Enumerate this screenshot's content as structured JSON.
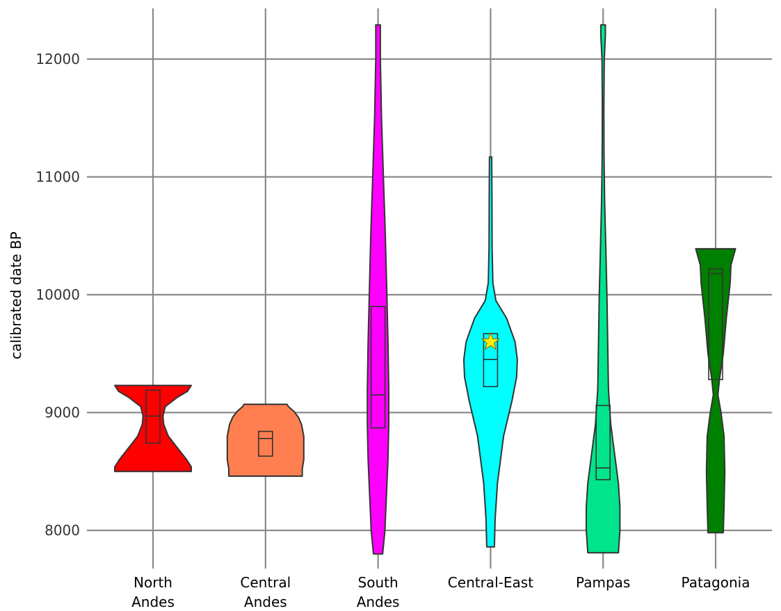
{
  "chart_data": {
    "type": "violin",
    "title": "",
    "xlabel": "",
    "ylabel": "calibrated date BP",
    "ylim": [
      7800,
      12300
    ],
    "yticks": [
      8000,
      9000,
      10000,
      11000,
      12000
    ],
    "ytick_labels": [
      "8000",
      "9000",
      "10000",
      "11000",
      "12000"
    ],
    "grid": true,
    "categories": [
      {
        "name": "North Andes",
        "label_lines": [
          "North",
          "Andes"
        ]
      },
      {
        "name": "Central Andes",
        "label_lines": [
          "Central",
          "Andes"
        ]
      },
      {
        "name": "South Andes",
        "label_lines": [
          "South",
          "Andes"
        ]
      },
      {
        "name": "Central-East",
        "label_lines": [
          "Central-East"
        ]
      },
      {
        "name": "Pampas",
        "label_lines": [
          "Pampas"
        ]
      },
      {
        "name": "Patagonia",
        "label_lines": [
          "Patagonia"
        ]
      }
    ],
    "series": [
      {
        "category": "North Andes",
        "color": "#ff0000",
        "min": 8500,
        "max": 9230,
        "box": {
          "q1": 8740,
          "median": 8970,
          "q3": 9190
        },
        "profile": [
          [
            8500,
            0.5
          ],
          [
            8540,
            0.5
          ],
          [
            8600,
            0.44
          ],
          [
            8700,
            0.32
          ],
          [
            8800,
            0.2
          ],
          [
            8900,
            0.14
          ],
          [
            8970,
            0.13
          ],
          [
            9050,
            0.16
          ],
          [
            9130,
            0.32
          ],
          [
            9180,
            0.45
          ],
          [
            9230,
            0.5
          ]
        ]
      },
      {
        "category": "Central Andes",
        "color": "#ff7f50",
        "min": 8460,
        "max": 9070,
        "box": {
          "q1": 8630,
          "median": 8780,
          "q3": 8840
        },
        "profile": [
          [
            8460,
            0.48
          ],
          [
            8520,
            0.48
          ],
          [
            8600,
            0.5
          ],
          [
            8700,
            0.5
          ],
          [
            8800,
            0.5
          ],
          [
            8900,
            0.47
          ],
          [
            8960,
            0.43
          ],
          [
            9010,
            0.37
          ],
          [
            9050,
            0.3
          ],
          [
            9070,
            0.28
          ]
        ]
      },
      {
        "category": "South Andes",
        "color": "#ff00ff",
        "min": 7800,
        "max": 12290,
        "box": {
          "q1": 8870,
          "median": 9150,
          "q3": 9900
        },
        "profile": [
          [
            7800,
            0.06
          ],
          [
            8000,
            0.09
          ],
          [
            8300,
            0.11
          ],
          [
            8600,
            0.13
          ],
          [
            8900,
            0.14
          ],
          [
            9200,
            0.14
          ],
          [
            9600,
            0.13
          ],
          [
            10000,
            0.115
          ],
          [
            10500,
            0.095
          ],
          [
            11000,
            0.07
          ],
          [
            11500,
            0.045
          ],
          [
            12000,
            0.03
          ],
          [
            12290,
            0.03
          ]
        ]
      },
      {
        "category": "Central-East",
        "color": "#00ffff",
        "min": 7860,
        "max": 11170,
        "box": {
          "q1": 9220,
          "median": 9450,
          "q3": 9670
        },
        "profile": [
          [
            7860,
            0.05
          ],
          [
            8100,
            0.06
          ],
          [
            8400,
            0.09
          ],
          [
            8800,
            0.17
          ],
          [
            9100,
            0.28
          ],
          [
            9300,
            0.34
          ],
          [
            9450,
            0.35
          ],
          [
            9600,
            0.32
          ],
          [
            9800,
            0.21
          ],
          [
            9950,
            0.07
          ],
          [
            10100,
            0.03
          ],
          [
            10400,
            0.02
          ],
          [
            10800,
            0.018
          ],
          [
            11170,
            0.015
          ]
        ]
      },
      {
        "category": "Pampas",
        "color": "#00e48c",
        "min": 7810,
        "max": 12290,
        "box": {
          "q1": 8430,
          "median": 8530,
          "q3": 9060
        },
        "profile": [
          [
            7810,
            0.2
          ],
          [
            8000,
            0.22
          ],
          [
            8200,
            0.22
          ],
          [
            8400,
            0.2
          ],
          [
            8600,
            0.16
          ],
          [
            8900,
            0.1
          ],
          [
            9200,
            0.07
          ],
          [
            9600,
            0.06
          ],
          [
            10000,
            0.05
          ],
          [
            10400,
            0.035
          ],
          [
            10800,
            0.02
          ],
          [
            11200,
            0.012
          ],
          [
            11600,
            0.01
          ],
          [
            12000,
            0.015
          ],
          [
            12200,
            0.03
          ],
          [
            12290,
            0.03
          ]
        ]
      },
      {
        "category": "Patagonia",
        "color": "#008000",
        "min": 7980,
        "max": 10390,
        "box": {
          "q1": 9280,
          "median": 10180,
          "q3": 10220
        },
        "profile": [
          [
            7980,
            0.1
          ],
          [
            8200,
            0.11
          ],
          [
            8500,
            0.12
          ],
          [
            8800,
            0.11
          ],
          [
            9000,
            0.07
          ],
          [
            9150,
            0.03
          ],
          [
            9280,
            0.05
          ],
          [
            9500,
            0.1
          ],
          [
            9800,
            0.14
          ],
          [
            10100,
            0.19
          ],
          [
            10250,
            0.2
          ],
          [
            10390,
            0.26
          ]
        ]
      }
    ],
    "annotations": [
      {
        "category": "Central-East",
        "y": 9600,
        "marker": "star",
        "color": "#ffee00"
      }
    ]
  }
}
